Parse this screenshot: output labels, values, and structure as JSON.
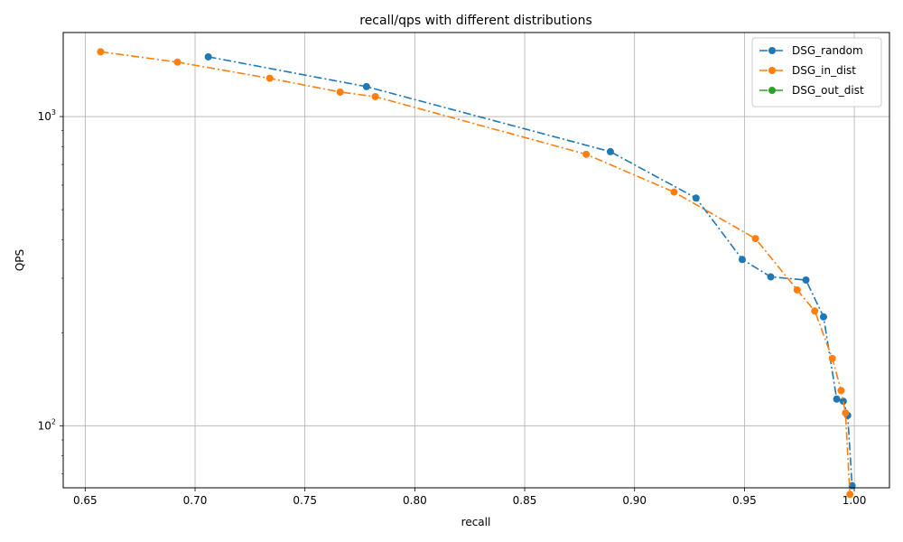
{
  "chart_data": {
    "type": "line",
    "title": "recall/qps with different distributions",
    "xlabel": "recall",
    "ylabel": "QPS",
    "xlim": [
      0.64,
      1.016
    ],
    "ylim": [
      63,
      1870
    ],
    "yscale": "log",
    "grid": true,
    "legend_position": "top-right",
    "x_ticks": [
      0.65,
      0.7,
      0.75,
      0.8,
      0.85,
      0.9,
      0.95,
      1.0
    ],
    "x_tick_labels": [
      "0.65",
      "0.70",
      "0.75",
      "0.80",
      "0.85",
      "0.90",
      "0.95",
      "1.00"
    ],
    "y_ticks": [
      {
        "value": 100,
        "base": "10",
        "exp": "2"
      },
      {
        "value": 1000,
        "base": "10",
        "exp": "3"
      }
    ],
    "series": [
      {
        "name": "DSG_random",
        "color": "#1f77b4",
        "x": [
          0.706,
          0.778,
          0.889,
          0.928,
          0.949,
          0.962,
          0.978,
          0.986,
          0.992,
          0.995,
          0.997,
          0.999
        ],
        "y": [
          1560,
          1250,
          770,
          545,
          345,
          303,
          296,
          225,
          122,
          120,
          108,
          64
        ]
      },
      {
        "name": "DSG_in_dist",
        "color": "#ff7f0e",
        "x": [
          0.657,
          0.692,
          0.734,
          0.766,
          0.782,
          0.878,
          0.918,
          0.955,
          0.974,
          0.982,
          0.99,
          0.994,
          0.996,
          0.998
        ],
        "y": [
          1620,
          1500,
          1330,
          1200,
          1160,
          755,
          570,
          403,
          275,
          235,
          165,
          130,
          110,
          60
        ]
      },
      {
        "name": "DSG_out_dist",
        "color": "#2ca02c",
        "x": [],
        "y": []
      }
    ]
  }
}
